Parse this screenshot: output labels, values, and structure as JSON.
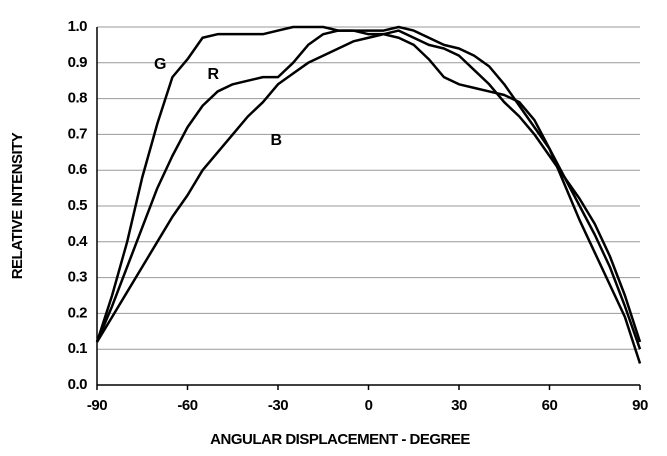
{
  "chart_data": {
    "type": "line",
    "xlabel": "ANGULAR DISPLACEMENT - DEGREE",
    "ylabel": "RELATIVE INTENSITY",
    "x": [
      -90,
      -85,
      -80,
      -75,
      -70,
      -65,
      -60,
      -55,
      -50,
      -45,
      -40,
      -35,
      -30,
      -25,
      -20,
      -15,
      -10,
      -5,
      0,
      5,
      10,
      15,
      20,
      25,
      30,
      35,
      40,
      45,
      50,
      55,
      60,
      65,
      70,
      75,
      80,
      85,
      90
    ],
    "series": [
      {
        "name": "G",
        "color": "#000000",
        "values": [
          0.12,
          0.25,
          0.4,
          0.58,
          0.73,
          0.86,
          0.91,
          0.97,
          0.98,
          0.98,
          0.98,
          0.98,
          0.99,
          1.0,
          1.0,
          1.0,
          0.99,
          0.99,
          0.98,
          0.98,
          0.97,
          0.95,
          0.91,
          0.86,
          0.84,
          0.83,
          0.82,
          0.81,
          0.79,
          0.74,
          0.66,
          0.56,
          0.46,
          0.37,
          0.28,
          0.19,
          0.06
        ]
      },
      {
        "name": "R",
        "color": "#000000",
        "values": [
          0.12,
          0.22,
          0.33,
          0.44,
          0.55,
          0.64,
          0.72,
          0.78,
          0.82,
          0.84,
          0.85,
          0.86,
          0.86,
          0.9,
          0.95,
          0.98,
          0.99,
          0.99,
          0.99,
          0.99,
          1.0,
          0.99,
          0.97,
          0.95,
          0.94,
          0.92,
          0.89,
          0.84,
          0.78,
          0.72,
          0.66,
          0.58,
          0.5,
          0.42,
          0.33,
          0.22,
          0.1
        ]
      },
      {
        "name": "B",
        "color": "#000000",
        "values": [
          0.12,
          0.19,
          0.26,
          0.33,
          0.4,
          0.47,
          0.53,
          0.6,
          0.65,
          0.7,
          0.75,
          0.79,
          0.84,
          0.87,
          0.9,
          0.92,
          0.94,
          0.96,
          0.97,
          0.98,
          0.99,
          0.97,
          0.95,
          0.94,
          0.92,
          0.88,
          0.84,
          0.79,
          0.75,
          0.7,
          0.64,
          0.58,
          0.52,
          0.45,
          0.36,
          0.25,
          0.12
        ]
      }
    ],
    "xlim": [
      -90,
      90
    ],
    "xticks": [
      -90,
      -60,
      -30,
      0,
      30,
      60,
      90
    ],
    "ylim": [
      0,
      1
    ],
    "yticks": [
      {
        "value": 0,
        "label": "0.0"
      },
      0.1,
      0.2,
      0.3,
      0.4,
      0.5,
      0.6,
      0.7,
      0.8,
      0.9,
      {
        "value": 1,
        "label": "1.0"
      }
    ],
    "grid": true
  }
}
